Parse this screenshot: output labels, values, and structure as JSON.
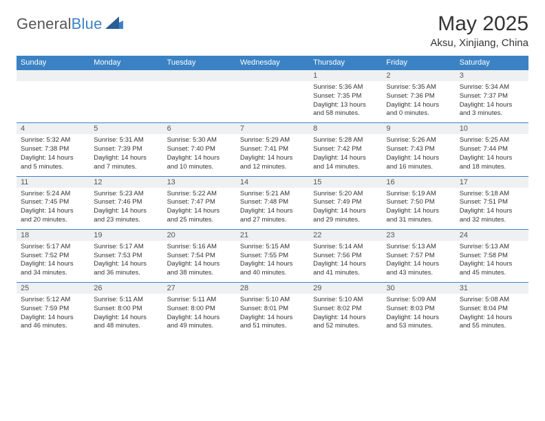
{
  "brand": {
    "left": "General",
    "right": "Blue"
  },
  "title": "May 2025",
  "location": "Aksu, Xinjiang, China",
  "weekdays": [
    "Sunday",
    "Monday",
    "Tuesday",
    "Wednesday",
    "Thursday",
    "Friday",
    "Saturday"
  ],
  "colors": {
    "header_bg": "#3b82c4",
    "header_text": "#ffffff",
    "daynum_bg": "#eef0f2",
    "cell_border": "#3b82c4",
    "body_text": "#333333",
    "page_bg": "#ffffff",
    "logo_gray": "#555555",
    "logo_blue": "#3b82c4"
  },
  "typography": {
    "title_fontsize": 30,
    "location_fontsize": 15,
    "weekday_fontsize": 11,
    "daynum_fontsize": 11,
    "cell_fontsize": 9.5,
    "logo_fontsize": 22
  },
  "layout": {
    "columns": 7,
    "rows": 5,
    "first_weekday_index": 4
  },
  "days": [
    {
      "n": "1",
      "sunrise": "Sunrise: 5:36 AM",
      "sunset": "Sunset: 7:35 PM",
      "daylight": "Daylight: 13 hours and 58 minutes."
    },
    {
      "n": "2",
      "sunrise": "Sunrise: 5:35 AM",
      "sunset": "Sunset: 7:36 PM",
      "daylight": "Daylight: 14 hours and 0 minutes."
    },
    {
      "n": "3",
      "sunrise": "Sunrise: 5:34 AM",
      "sunset": "Sunset: 7:37 PM",
      "daylight": "Daylight: 14 hours and 3 minutes."
    },
    {
      "n": "4",
      "sunrise": "Sunrise: 5:32 AM",
      "sunset": "Sunset: 7:38 PM",
      "daylight": "Daylight: 14 hours and 5 minutes."
    },
    {
      "n": "5",
      "sunrise": "Sunrise: 5:31 AM",
      "sunset": "Sunset: 7:39 PM",
      "daylight": "Daylight: 14 hours and 7 minutes."
    },
    {
      "n": "6",
      "sunrise": "Sunrise: 5:30 AM",
      "sunset": "Sunset: 7:40 PM",
      "daylight": "Daylight: 14 hours and 10 minutes."
    },
    {
      "n": "7",
      "sunrise": "Sunrise: 5:29 AM",
      "sunset": "Sunset: 7:41 PM",
      "daylight": "Daylight: 14 hours and 12 minutes."
    },
    {
      "n": "8",
      "sunrise": "Sunrise: 5:28 AM",
      "sunset": "Sunset: 7:42 PM",
      "daylight": "Daylight: 14 hours and 14 minutes."
    },
    {
      "n": "9",
      "sunrise": "Sunrise: 5:26 AM",
      "sunset": "Sunset: 7:43 PM",
      "daylight": "Daylight: 14 hours and 16 minutes."
    },
    {
      "n": "10",
      "sunrise": "Sunrise: 5:25 AM",
      "sunset": "Sunset: 7:44 PM",
      "daylight": "Daylight: 14 hours and 18 minutes."
    },
    {
      "n": "11",
      "sunrise": "Sunrise: 5:24 AM",
      "sunset": "Sunset: 7:45 PM",
      "daylight": "Daylight: 14 hours and 20 minutes."
    },
    {
      "n": "12",
      "sunrise": "Sunrise: 5:23 AM",
      "sunset": "Sunset: 7:46 PM",
      "daylight": "Daylight: 14 hours and 23 minutes."
    },
    {
      "n": "13",
      "sunrise": "Sunrise: 5:22 AM",
      "sunset": "Sunset: 7:47 PM",
      "daylight": "Daylight: 14 hours and 25 minutes."
    },
    {
      "n": "14",
      "sunrise": "Sunrise: 5:21 AM",
      "sunset": "Sunset: 7:48 PM",
      "daylight": "Daylight: 14 hours and 27 minutes."
    },
    {
      "n": "15",
      "sunrise": "Sunrise: 5:20 AM",
      "sunset": "Sunset: 7:49 PM",
      "daylight": "Daylight: 14 hours and 29 minutes."
    },
    {
      "n": "16",
      "sunrise": "Sunrise: 5:19 AM",
      "sunset": "Sunset: 7:50 PM",
      "daylight": "Daylight: 14 hours and 31 minutes."
    },
    {
      "n": "17",
      "sunrise": "Sunrise: 5:18 AM",
      "sunset": "Sunset: 7:51 PM",
      "daylight": "Daylight: 14 hours and 32 minutes."
    },
    {
      "n": "18",
      "sunrise": "Sunrise: 5:17 AM",
      "sunset": "Sunset: 7:52 PM",
      "daylight": "Daylight: 14 hours and 34 minutes."
    },
    {
      "n": "19",
      "sunrise": "Sunrise: 5:17 AM",
      "sunset": "Sunset: 7:53 PM",
      "daylight": "Daylight: 14 hours and 36 minutes."
    },
    {
      "n": "20",
      "sunrise": "Sunrise: 5:16 AM",
      "sunset": "Sunset: 7:54 PM",
      "daylight": "Daylight: 14 hours and 38 minutes."
    },
    {
      "n": "21",
      "sunrise": "Sunrise: 5:15 AM",
      "sunset": "Sunset: 7:55 PM",
      "daylight": "Daylight: 14 hours and 40 minutes."
    },
    {
      "n": "22",
      "sunrise": "Sunrise: 5:14 AM",
      "sunset": "Sunset: 7:56 PM",
      "daylight": "Daylight: 14 hours and 41 minutes."
    },
    {
      "n": "23",
      "sunrise": "Sunrise: 5:13 AM",
      "sunset": "Sunset: 7:57 PM",
      "daylight": "Daylight: 14 hours and 43 minutes."
    },
    {
      "n": "24",
      "sunrise": "Sunrise: 5:13 AM",
      "sunset": "Sunset: 7:58 PM",
      "daylight": "Daylight: 14 hours and 45 minutes."
    },
    {
      "n": "25",
      "sunrise": "Sunrise: 5:12 AM",
      "sunset": "Sunset: 7:59 PM",
      "daylight": "Daylight: 14 hours and 46 minutes."
    },
    {
      "n": "26",
      "sunrise": "Sunrise: 5:11 AM",
      "sunset": "Sunset: 8:00 PM",
      "daylight": "Daylight: 14 hours and 48 minutes."
    },
    {
      "n": "27",
      "sunrise": "Sunrise: 5:11 AM",
      "sunset": "Sunset: 8:00 PM",
      "daylight": "Daylight: 14 hours and 49 minutes."
    },
    {
      "n": "28",
      "sunrise": "Sunrise: 5:10 AM",
      "sunset": "Sunset: 8:01 PM",
      "daylight": "Daylight: 14 hours and 51 minutes."
    },
    {
      "n": "29",
      "sunrise": "Sunrise: 5:10 AM",
      "sunset": "Sunset: 8:02 PM",
      "daylight": "Daylight: 14 hours and 52 minutes."
    },
    {
      "n": "30",
      "sunrise": "Sunrise: 5:09 AM",
      "sunset": "Sunset: 8:03 PM",
      "daylight": "Daylight: 14 hours and 53 minutes."
    },
    {
      "n": "31",
      "sunrise": "Sunrise: 5:08 AM",
      "sunset": "Sunset: 8:04 PM",
      "daylight": "Daylight: 14 hours and 55 minutes."
    }
  ]
}
